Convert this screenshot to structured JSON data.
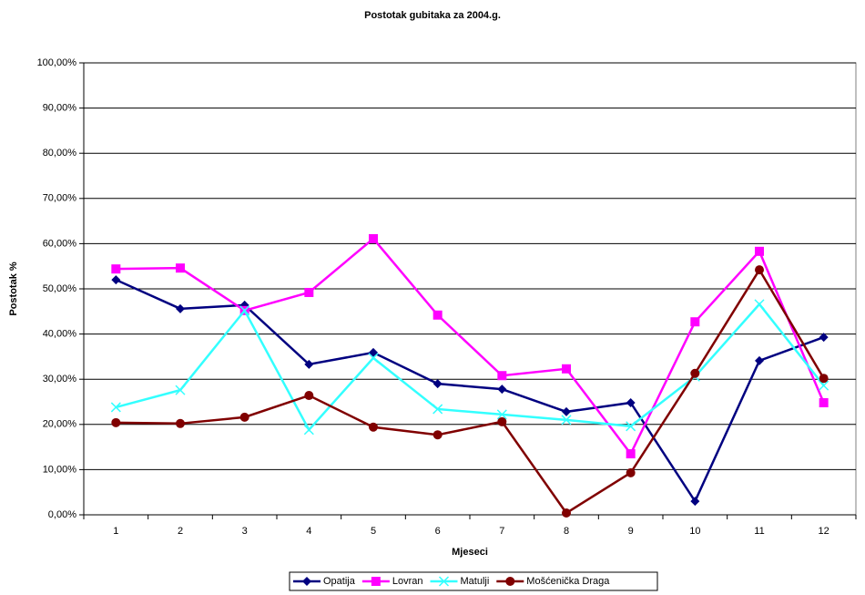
{
  "chart_data": {
    "type": "line",
    "title": "Postotak gubitaka za 2004.g.",
    "x_label": "Mjeseci",
    "y_label": "Postotak %",
    "categories": [
      1,
      2,
      3,
      4,
      5,
      6,
      7,
      8,
      9,
      10,
      11,
      12
    ],
    "ylim": [
      0,
      100
    ],
    "yticks": [
      {
        "value": 0,
        "label": "0,00%"
      },
      {
        "value": 10,
        "label": "10,00%"
      },
      {
        "value": 20,
        "label": "20,00%"
      },
      {
        "value": 30,
        "label": "30,00%"
      },
      {
        "value": 40,
        "label": "40,00%"
      },
      {
        "value": 50,
        "label": "50,00%"
      },
      {
        "value": 60,
        "label": "60,00%"
      },
      {
        "value": 70,
        "label": "70,00%"
      },
      {
        "value": 80,
        "label": "80,00%"
      },
      {
        "value": 90,
        "label": "90,00%"
      },
      {
        "value": 100,
        "label": "100,00%"
      }
    ],
    "grid": true,
    "legend": "bottom",
    "series": [
      {
        "name": "Opatija",
        "color": "#000080",
        "marker": "diamond",
        "values": [
          52.0,
          45.6,
          46.4,
          33.3,
          35.9,
          29.0,
          27.8,
          22.8,
          24.8,
          3.0,
          34.1,
          39.3
        ]
      },
      {
        "name": "Lovran",
        "color": "#ff00ff",
        "marker": "square",
        "values": [
          54.4,
          54.6,
          45.2,
          49.2,
          61.1,
          44.2,
          30.8,
          32.3,
          13.5,
          42.7,
          58.3,
          24.8
        ]
      },
      {
        "name": "Matulji",
        "color": "#33ffff",
        "marker": "x",
        "values": [
          23.8,
          27.6,
          45.2,
          18.8,
          34.7,
          23.4,
          22.2,
          21.0,
          19.6,
          30.6,
          46.6,
          28.6
        ]
      },
      {
        "name": "Mošćenička Draga",
        "color": "#800000",
        "marker": "circle",
        "values": [
          20.4,
          20.2,
          21.6,
          26.4,
          19.4,
          17.7,
          20.6,
          0.4,
          9.3,
          31.3,
          54.2,
          30.2
        ]
      }
    ]
  }
}
